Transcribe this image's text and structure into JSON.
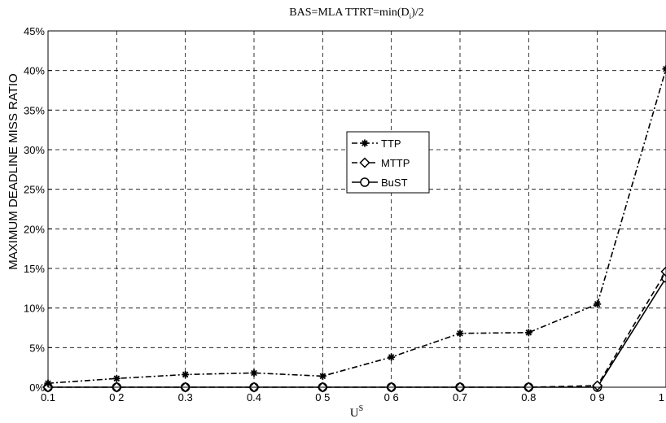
{
  "chart_data": {
    "type": "line",
    "title": "BAS=MLA   TTRT=min(D",
    "title_sub": "i",
    "title_end": ")/2",
    "xlabel": "U",
    "xlabel_sup": "S",
    "ylabel": "MAXIMUM DEADLINE MISS RATIO",
    "xlim": [
      0.1,
      1.0
    ],
    "ylim": [
      0,
      45
    ],
    "grid": true,
    "legend_position": "center",
    "x_ticks": [
      0.1,
      0.2,
      0.3,
      0.4,
      0.5,
      0.6,
      0.7,
      0.8,
      0.9,
      1.0
    ],
    "x_tick_labels": [
      "0.1",
      "0 2",
      "0.3",
      "0.4",
      "0 5",
      "0 6",
      "0.7",
      "0.8",
      "0 9",
      "1"
    ],
    "y_ticks": [
      0,
      5,
      10,
      15,
      20,
      25,
      30,
      35,
      40,
      45
    ],
    "y_tick_labels": [
      "0%",
      "5%",
      "10%",
      "15%",
      "20%",
      "25%",
      "30%",
      "35%",
      "40%",
      "45%"
    ],
    "x": [
      0.1,
      0.2,
      0.3,
      0.4,
      0.5,
      0.6,
      0.7,
      0.8,
      0.9,
      1.0
    ],
    "series": [
      {
        "name": "TTP",
        "marker": "asterisk",
        "dash": "dash-dot",
        "values": [
          0.5,
          1.1,
          1.6,
          1.8,
          1.4,
          3.8,
          6.8,
          6.9,
          10.5,
          40.2
        ]
      },
      {
        "name": "MTTP",
        "marker": "diamond",
        "dash": "dashed",
        "values": [
          0,
          0,
          0,
          0,
          0,
          0,
          0,
          0,
          0.2,
          14.6
        ]
      },
      {
        "name": "BuST",
        "marker": "circle",
        "dash": "solid",
        "values": [
          0,
          0,
          0,
          0,
          0,
          0,
          0,
          0,
          0,
          13.8
        ]
      }
    ]
  }
}
